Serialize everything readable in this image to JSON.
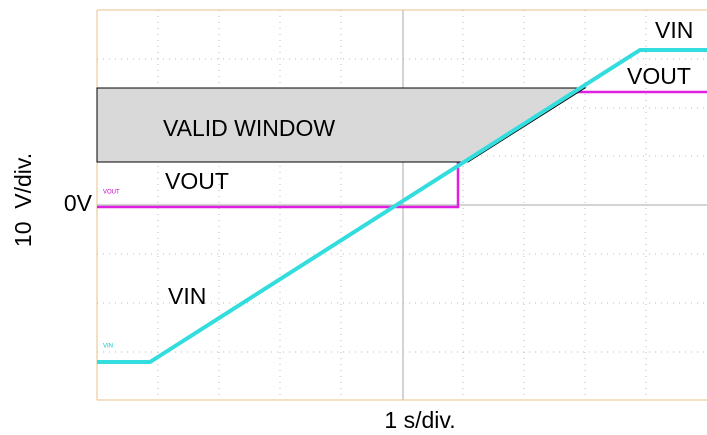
{
  "traces": {
    "vin_label": "VIN",
    "vout_label": "VOUT",
    "vin_label_right": "VIN",
    "vout_label_right": "VOUT",
    "scope_vout": "VOUT",
    "scope_vin": "VIN"
  },
  "window_label": "VALID WINDOW",
  "zero_label": "0V",
  "y_axis_label": "10  V/div.",
  "x_axis_label": "1 s/div."
}
